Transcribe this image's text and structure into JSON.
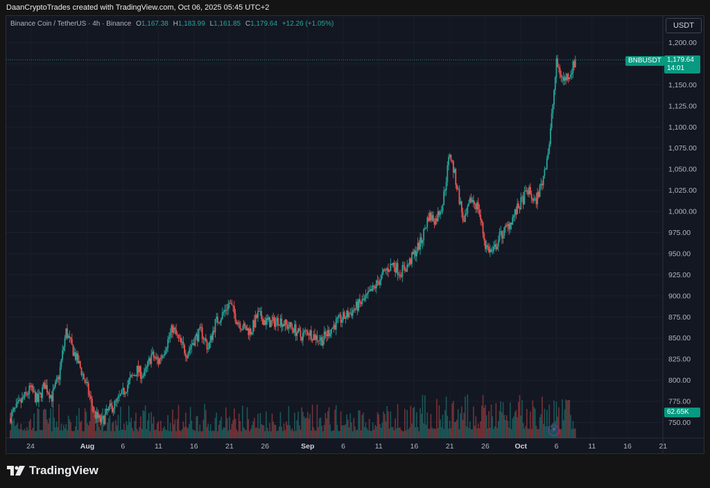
{
  "header": {
    "attribution": "DaanCryptoTrades created with TradingView.com, Oct 06, 2025 05:45 UTC+2"
  },
  "legend": {
    "symbol": "Binance Coin / TetherUS · 4h · Binance",
    "open_label": "O",
    "open": "1,167.38",
    "high_label": "H",
    "high": "1,183.99",
    "low_label": "L",
    "low": "1,161.85",
    "close_label": "C",
    "close": "1,179.64",
    "change": "+12.26 (+1.05%)"
  },
  "currency": "USDT",
  "price_tag": {
    "symbol": "BNBUSDT",
    "price": "1,179.64",
    "countdown": "14:01"
  },
  "volume_tag": "62.65K",
  "footer": {
    "brand": "TradingView"
  },
  "colors": {
    "up": "#26a69a",
    "down": "#ef5350",
    "background": "#131722",
    "grid": "#1e222d",
    "price_line": "#089981"
  },
  "chart_data": {
    "type": "candlestick",
    "title": "Binance Coin / TetherUS · 4h · Binance",
    "ylim": [
      735,
      1210
    ],
    "y_ticks": [
      750,
      775,
      800,
      825,
      850,
      875,
      900,
      925,
      950,
      975,
      1000,
      1025,
      1050,
      1075,
      1100,
      1125,
      1150,
      1175,
      1200
    ],
    "y_tick_labels": [
      "750.00",
      "775.00",
      "800.00",
      "825.00",
      "850.00",
      "875.00",
      "900.00",
      "925.00",
      "950.00",
      "975.00",
      "1,000.00",
      "1,025.00",
      "1,050.00",
      "1,075.00",
      "1,100.00",
      "1,125.00",
      "1,150.00",
      "1,175.00",
      "1,200.00"
    ],
    "x_tick_labels": [
      "24",
      "Aug",
      "6",
      "11",
      "16",
      "21",
      "26",
      "Sep",
      "6",
      "11",
      "16",
      "21",
      "26",
      "Oct",
      "6",
      "11",
      "16",
      "21"
    ],
    "x_tick_days": [
      0,
      8,
      13,
      18,
      23,
      28,
      33,
      39,
      44,
      49,
      54,
      59,
      64,
      69,
      74,
      79,
      84,
      89
    ],
    "current_price": 1179.64,
    "close_series_anchors": [
      [
        -3,
        755
      ],
      [
        0,
        790
      ],
      [
        1,
        775
      ],
      [
        2,
        795
      ],
      [
        3,
        780
      ],
      [
        4,
        805
      ],
      [
        5,
        858
      ],
      [
        6,
        835
      ],
      [
        7,
        815
      ],
      [
        8,
        790
      ],
      [
        9,
        760
      ],
      [
        10,
        750
      ],
      [
        11,
        765
      ],
      [
        12,
        772
      ],
      [
        13,
        785
      ],
      [
        14,
        800
      ],
      [
        15,
        812
      ],
      [
        16,
        805
      ],
      [
        17,
        830
      ],
      [
        18,
        822
      ],
      [
        19,
        840
      ],
      [
        20,
        862
      ],
      [
        21,
        845
      ],
      [
        22,
        832
      ],
      [
        23,
        848
      ],
      [
        24,
        858
      ],
      [
        25,
        838
      ],
      [
        26,
        868
      ],
      [
        27,
        878
      ],
      [
        28,
        892
      ],
      [
        29,
        872
      ],
      [
        30,
        862
      ],
      [
        31,
        858
      ],
      [
        32,
        878
      ],
      [
        33,
        870
      ],
      [
        34,
        868
      ],
      [
        35,
        872
      ],
      [
        36,
        865
      ],
      [
        37,
        862
      ],
      [
        38,
        852
      ],
      [
        39,
        858
      ],
      [
        40,
        852
      ],
      [
        41,
        848
      ],
      [
        42,
        858
      ],
      [
        43,
        868
      ],
      [
        44,
        874
      ],
      [
        45,
        880
      ],
      [
        46,
        888
      ],
      [
        47,
        895
      ],
      [
        48,
        905
      ],
      [
        49,
        918
      ],
      [
        50,
        930
      ],
      [
        51,
        938
      ],
      [
        52,
        928
      ],
      [
        53,
        935
      ],
      [
        54,
        950
      ],
      [
        55,
        965
      ],
      [
        56,
        995
      ],
      [
        57,
        990
      ],
      [
        58,
        1010
      ],
      [
        59,
        1070
      ],
      [
        60,
        1030
      ],
      [
        61,
        985
      ],
      [
        62,
        1015
      ],
      [
        63,
        1005
      ],
      [
        64,
        960
      ],
      [
        65,
        950
      ],
      [
        66,
        970
      ],
      [
        67,
        980
      ],
      [
        68,
        995
      ],
      [
        69,
        1010
      ],
      [
        70,
        1025
      ],
      [
        71,
        1010
      ],
      [
        72,
        1035
      ],
      [
        73,
        1080
      ],
      [
        74,
        1175
      ],
      [
        75,
        1155
      ],
      [
        76,
        1165
      ],
      [
        76.7,
        1179.64
      ]
    ],
    "volume_peak_label": "62.65K"
  }
}
